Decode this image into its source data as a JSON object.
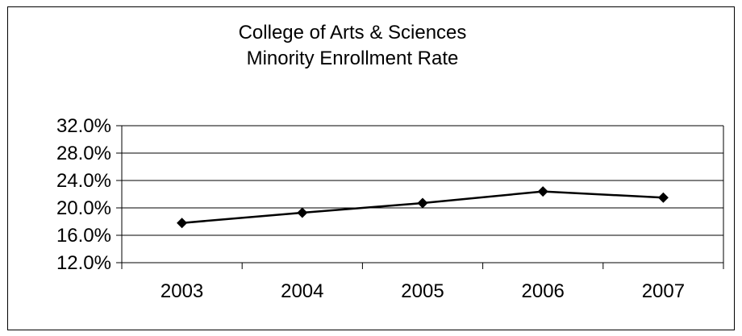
{
  "chart_data": {
    "type": "line",
    "title_lines": [
      "College of Arts & Sciences",
      "Minority Enrollment Rate"
    ],
    "xlabel": "",
    "ylabel": "",
    "categories": [
      "2003",
      "2004",
      "2005",
      "2006",
      "2007"
    ],
    "series": [
      {
        "values": [
          17.8,
          19.3,
          20.7,
          22.4,
          21.5
        ]
      }
    ],
    "y_ticks": [
      "32.0%",
      "28.0%",
      "24.0%",
      "20.0%",
      "16.0%",
      "12.0%"
    ],
    "ylim": [
      12,
      32
    ],
    "y_step": 4,
    "grid": "horizontal",
    "legend": "none",
    "marker": "diamond",
    "colors": {
      "line": "#000000",
      "grid": "#000000",
      "frame": "#000000",
      "background": "#ffffff"
    }
  }
}
